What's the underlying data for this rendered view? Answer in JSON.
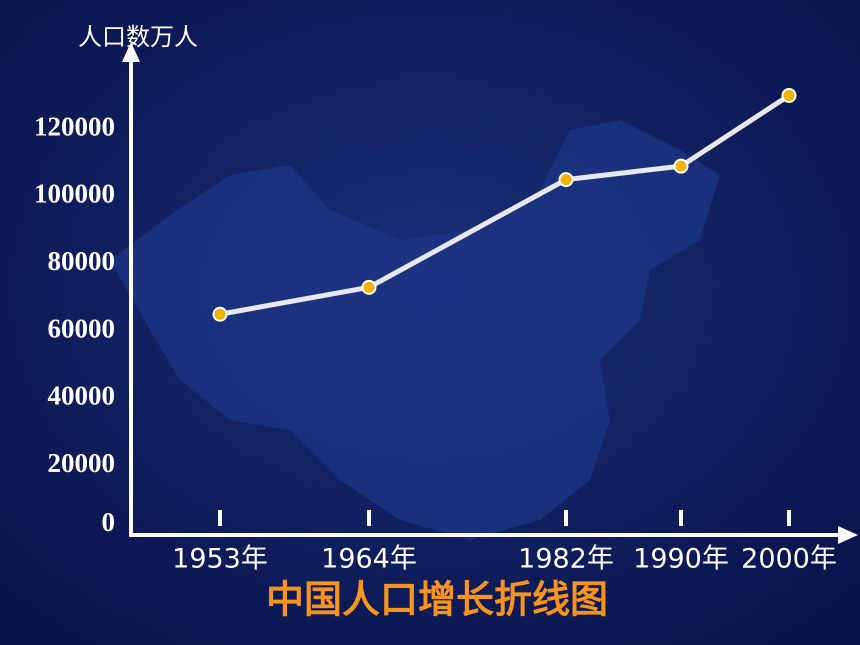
{
  "chart_data": {
    "type": "line",
    "title": "中国人口增长折线图",
    "y_label": "人口数万人",
    "categories": [
      "1953年",
      "1964年",
      "1982年",
      "1990年",
      "2000年"
    ],
    "series": [
      {
        "name": "人口",
        "color": "#e8e8f0",
        "values": [
          65000,
          73000,
          105000,
          109000,
          130000
        ]
      }
    ],
    "ylim": [
      0,
      145000
    ],
    "yticks": [
      0,
      20000,
      40000,
      60000,
      80000,
      100000,
      120000
    ]
  }
}
